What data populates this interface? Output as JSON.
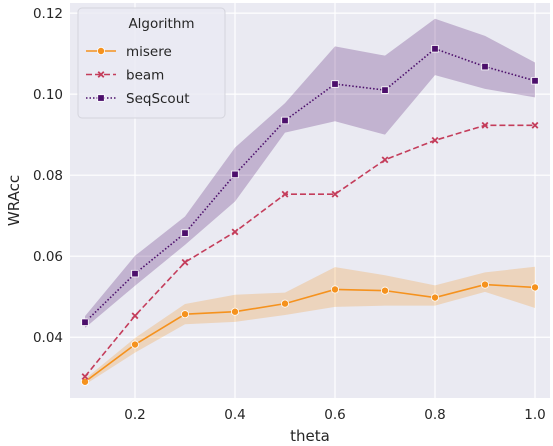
{
  "chart_data": {
    "type": "line",
    "xlabel": "theta",
    "ylabel": "WRAcc",
    "xlim": [
      0.07,
      1.03
    ],
    "ylim": [
      0.025,
      0.1225
    ],
    "xticks": [
      0.2,
      0.4,
      0.6,
      0.8,
      1.0
    ],
    "xtick_labels": [
      "0.2",
      "0.4",
      "0.6",
      "0.8",
      "1.0"
    ],
    "yticks": [
      0.04,
      0.06,
      0.08,
      0.1,
      0.12
    ],
    "ytick_labels": [
      "0.04",
      "0.06",
      "0.08",
      "0.10",
      "0.12"
    ],
    "grid": true,
    "legend": {
      "title": "Algorithm",
      "position": "top-left"
    },
    "x": [
      0.1,
      0.2,
      0.3,
      0.4,
      0.5,
      0.6,
      0.7,
      0.8,
      0.9,
      1.0
    ],
    "series": [
      {
        "name": "misere",
        "color": "#f5921e",
        "marker": "circle",
        "linestyle": "solid",
        "values": [
          0.029,
          0.0382,
          0.0457,
          0.0463,
          0.0483,
          0.0518,
          0.0515,
          0.0498,
          0.053,
          0.0523
        ],
        "ci_low": [
          0.0283,
          0.0362,
          0.0432,
          0.0438,
          0.0455,
          0.0475,
          0.0478,
          0.0478,
          0.0512,
          0.0472
        ],
        "ci_high": [
          0.0297,
          0.0398,
          0.0482,
          0.0505,
          0.051,
          0.0573,
          0.0553,
          0.0528,
          0.056,
          0.0574
        ]
      },
      {
        "name": "beam",
        "color": "#c43d5b",
        "marker": "x",
        "linestyle": "dashed",
        "values": [
          0.0303,
          0.0453,
          0.0585,
          0.066,
          0.0753,
          0.0753,
          0.0838,
          0.0886,
          0.0923,
          0.0923
        ]
      },
      {
        "name": "SeqScout",
        "color": "#4c0f6b",
        "marker": "square",
        "linestyle": "dotted",
        "values": [
          0.0437,
          0.0557,
          0.0657,
          0.0802,
          0.0935,
          0.1025,
          0.101,
          0.1112,
          0.1068,
          0.1033
        ],
        "ci_low": [
          0.0423,
          0.0527,
          0.0628,
          0.0735,
          0.0905,
          0.0933,
          0.09,
          0.1047,
          0.1013,
          0.0992
        ],
        "ci_high": [
          0.0452,
          0.0601,
          0.0698,
          0.0868,
          0.0978,
          0.1118,
          0.1095,
          0.1186,
          0.1144,
          0.1078
        ]
      }
    ],
    "colors": {
      "background": "#eaeaf2",
      "grid": "#ffffff",
      "text": "#262626"
    }
  }
}
